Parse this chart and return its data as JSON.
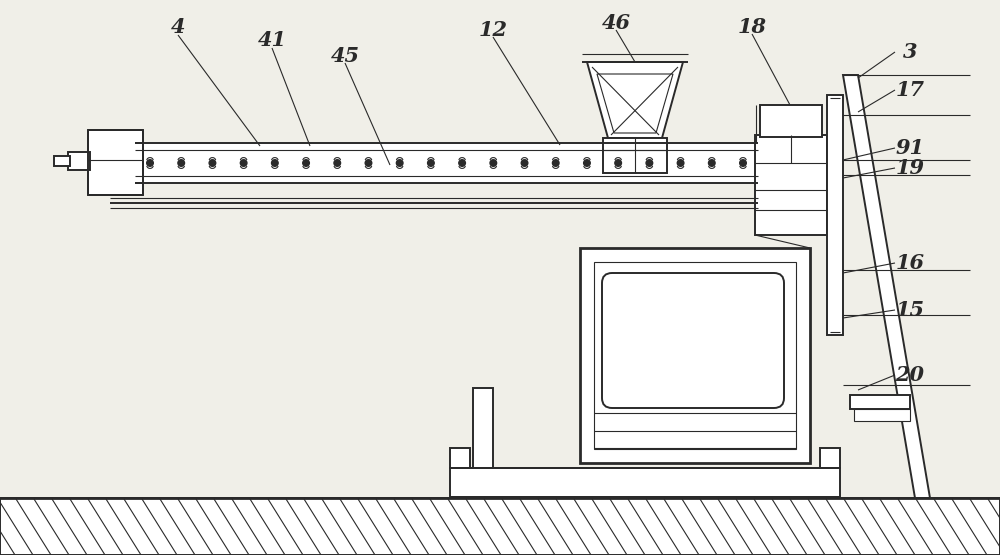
{
  "bg_color": "#f0efe8",
  "line_color": "#2a2a2a",
  "figsize": [
    10.0,
    5.55
  ],
  "dpi": 100,
  "label_fontsize": 15
}
